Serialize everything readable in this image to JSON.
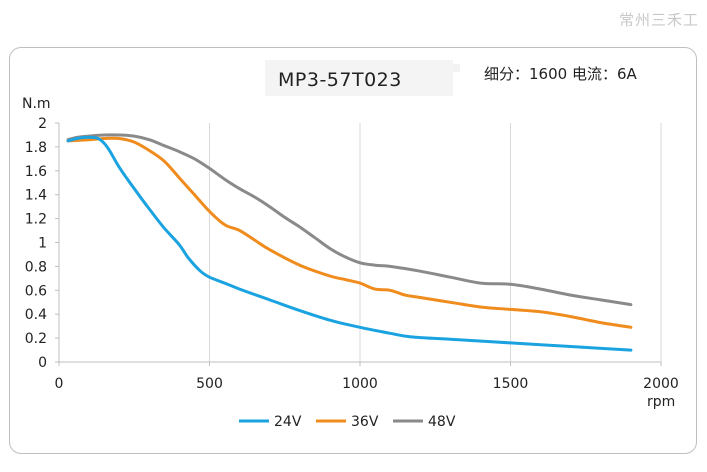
{
  "watermark": "常州三禾工",
  "chart_data": {
    "type": "line",
    "title": "MP3-57T023",
    "subtitle": "细分：1600 电流：6A",
    "xlabel": "rpm",
    "ylabel": "N.m",
    "xlim": [
      0,
      2000
    ],
    "ylim": [
      0,
      2
    ],
    "xticks": [
      "0",
      "500",
      "1000",
      "1500",
      "2000"
    ],
    "yticks": [
      "0",
      "0.2",
      "0.4",
      "0.6",
      "0.8",
      "1",
      "1.2",
      "1.4",
      "1.6",
      "1.8",
      "2"
    ],
    "grid": "vertical",
    "legend_position": "bottom",
    "series": [
      {
        "name": "24V",
        "color": "#1aa3e0",
        "x": [
          30,
          60,
          100,
          130,
          150,
          170,
          200,
          250,
          300,
          350,
          400,
          430,
          470,
          500,
          550,
          600,
          700,
          800,
          900,
          1000,
          1100,
          1170,
          1300,
          1500,
          1700,
          1900
        ],
        "y": [
          1.85,
          1.87,
          1.88,
          1.87,
          1.83,
          1.76,
          1.63,
          1.45,
          1.28,
          1.12,
          0.98,
          0.87,
          0.76,
          0.71,
          0.66,
          0.61,
          0.52,
          0.43,
          0.35,
          0.29,
          0.24,
          0.21,
          0.19,
          0.16,
          0.13,
          0.1
        ]
      },
      {
        "name": "36V",
        "color": "#f08c1e",
        "x": [
          30,
          100,
          150,
          200,
          250,
          300,
          350,
          400,
          450,
          500,
          550,
          600,
          650,
          700,
          800,
          900,
          950,
          1000,
          1050,
          1100,
          1150,
          1200,
          1300,
          1400,
          1500,
          1600,
          1700,
          1800,
          1900
        ],
        "y": [
          1.85,
          1.86,
          1.87,
          1.87,
          1.84,
          1.77,
          1.68,
          1.54,
          1.4,
          1.26,
          1.15,
          1.1,
          1.02,
          0.94,
          0.81,
          0.72,
          0.69,
          0.66,
          0.61,
          0.6,
          0.56,
          0.54,
          0.5,
          0.46,
          0.44,
          0.42,
          0.38,
          0.33,
          0.29
        ]
      },
      {
        "name": "48V",
        "color": "#8a8a8a",
        "x": [
          30,
          60,
          100,
          150,
          200,
          250,
          300,
          350,
          400,
          450,
          500,
          550,
          600,
          650,
          700,
          750,
          800,
          850,
          900,
          950,
          1000,
          1050,
          1100,
          1200,
          1300,
          1400,
          1500,
          1600,
          1700,
          1800,
          1900
        ],
        "y": [
          1.86,
          1.88,
          1.89,
          1.9,
          1.9,
          1.89,
          1.86,
          1.81,
          1.76,
          1.7,
          1.62,
          1.53,
          1.45,
          1.38,
          1.3,
          1.21,
          1.13,
          1.04,
          0.95,
          0.88,
          0.83,
          0.81,
          0.8,
          0.76,
          0.71,
          0.66,
          0.65,
          0.61,
          0.56,
          0.52,
          0.48
        ]
      }
    ]
  }
}
